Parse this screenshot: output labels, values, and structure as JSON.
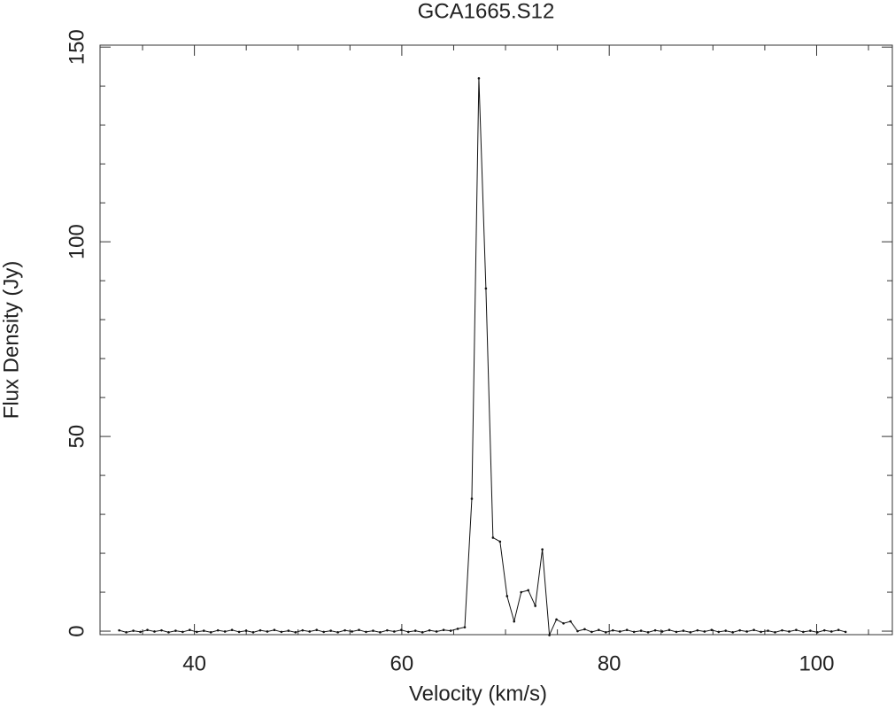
{
  "chart_data": {
    "type": "line",
    "title": "GCA1665.S12",
    "x_label": "Velocity (km/s)",
    "y_label": "Flux Density (Jy)",
    "xlim": [
      30.9,
      107.3
    ],
    "ylim": [
      -0.9,
      150.5
    ],
    "xticks": [
      40,
      60,
      80,
      100
    ],
    "yticks": [
      0,
      50,
      100,
      150
    ],
    "xminorticks": [
      35,
      45,
      50,
      55,
      65,
      70,
      75,
      85,
      90,
      95,
      105
    ],
    "yminorticks": [
      10,
      20,
      30,
      40,
      60,
      70,
      80,
      90,
      110,
      120,
      130,
      140
    ],
    "markers": true,
    "x": [
      32.75,
      33.43,
      34.11,
      34.79,
      35.47,
      36.15,
      36.83,
      37.51,
      38.19,
      38.87,
      39.55,
      40.23,
      40.91,
      41.59,
      42.27,
      42.95,
      43.63,
      44.31,
      44.99,
      45.67,
      46.35,
      47.03,
      47.71,
      48.39,
      49.07,
      49.75,
      50.43,
      51.11,
      51.79,
      52.47,
      53.15,
      53.83,
      54.51,
      55.19,
      55.87,
      56.55,
      57.23,
      57.91,
      58.59,
      59.27,
      59.95,
      60.63,
      61.31,
      61.99,
      62.67,
      63.35,
      64.03,
      64.71,
      65.39,
      66.07,
      66.75,
      67.43,
      68.11,
      68.79,
      69.47,
      70.15,
      70.83,
      71.51,
      72.19,
      72.87,
      73.55,
      74.23,
      74.91,
      75.59,
      76.27,
      76.95,
      77.63,
      78.31,
      78.99,
      79.67,
      80.35,
      81.03,
      81.71,
      82.39,
      83.07,
      83.75,
      84.43,
      85.11,
      85.79,
      86.47,
      87.15,
      87.83,
      88.51,
      89.19,
      89.87,
      90.55,
      91.23,
      91.91,
      92.59,
      93.27,
      93.95,
      94.63,
      95.31,
      95.99,
      96.67,
      97.35,
      98.03,
      98.71,
      99.39,
      100.07,
      100.75,
      101.43,
      102.11,
      102.79
    ],
    "series": [
      {
        "color": "#111111",
        "values": [
          0.2,
          -0.3,
          0.1,
          -0.2,
          0.3,
          -0.1,
          0.2,
          -0.3,
          0.1,
          -0.2,
          0.3,
          -0.2,
          0.1,
          -0.3,
          0.2,
          -0.1,
          0.3,
          -0.2,
          0.1,
          -0.3,
          0.2,
          -0.1,
          0.3,
          -0.2,
          0.1,
          -0.3,
          0.2,
          -0.1,
          0.3,
          -0.2,
          0.1,
          -0.3,
          0.2,
          -0.1,
          0.3,
          -0.2,
          0.1,
          -0.3,
          0.2,
          -0.1,
          0.3,
          -0.2,
          0.1,
          -0.3,
          0.2,
          -0.1,
          0.3,
          0.1,
          0.6,
          1.0,
          34,
          142,
          88,
          24,
          23,
          9,
          2.5,
          10,
          10.5,
          6.5,
          21,
          -1,
          3,
          2,
          2.5,
          0,
          0.5,
          -0.2,
          0.3,
          -0.3,
          0.2,
          -0.1,
          0.3,
          -0.2,
          0.1,
          -0.3,
          0.2,
          -0.1,
          0.3,
          -0.2,
          0.1,
          -0.3,
          0.2,
          -0.1,
          0.3,
          -0.2,
          0.1,
          -0.3,
          0.2,
          -0.1,
          0.3,
          -0.2,
          0.1,
          -0.3,
          0.2,
          -0.1,
          0.3,
          -0.2,
          0.1,
          -0.3,
          0.2,
          -0.1,
          0.3,
          -0.2
        ]
      }
    ]
  }
}
